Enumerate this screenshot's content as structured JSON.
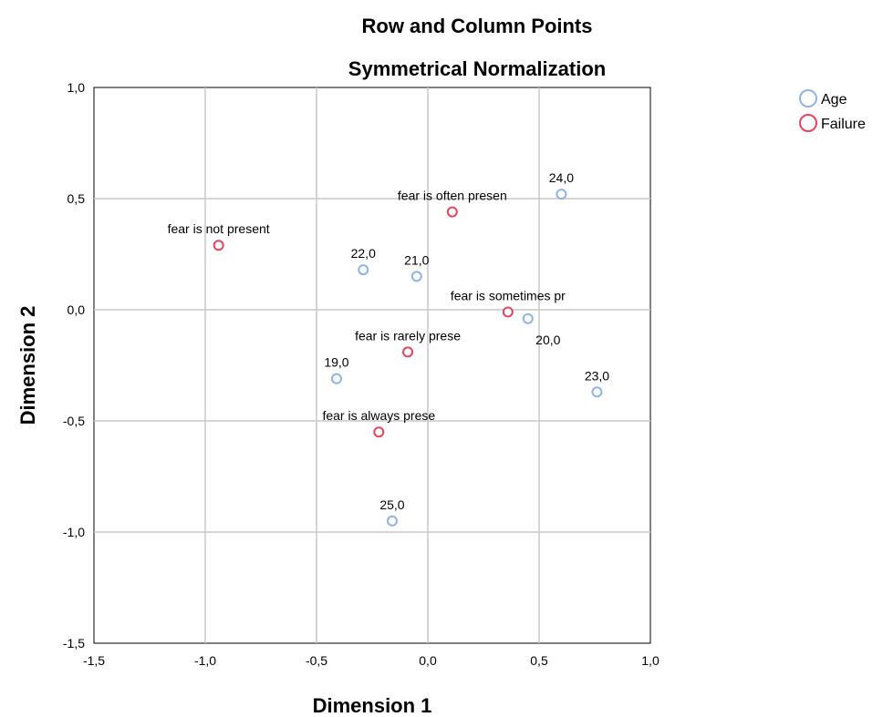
{
  "chart_data": {
    "type": "scatter",
    "title": "Row and Column Points",
    "subtitle": "Symmetrical Normalization",
    "xlabel": "Dimension 1",
    "ylabel": "Dimension 2",
    "xlim": [
      -1.5,
      1.0
    ],
    "ylim": [
      -1.5,
      1.0
    ],
    "x_ticks": [
      -1.5,
      -1.0,
      -0.5,
      0.0,
      0.5,
      1.0
    ],
    "y_ticks": [
      -1.5,
      -1.0,
      -0.5,
      0.0,
      0.5,
      1.0
    ],
    "x_tick_labels": [
      "-1,5",
      "-1,0",
      "-0,5",
      "0,0",
      "0,5",
      "1,0"
    ],
    "y_tick_labels": [
      "-1,5",
      "-1,0",
      "-0,5",
      "0,0",
      "0,5",
      "1,0"
    ],
    "grid": true,
    "legend_position": "top-right",
    "series": [
      {
        "name": "Age",
        "color": "#8fb4e3",
        "marker": "open-circle",
        "points": [
          {
            "label": "24,0",
            "x": 0.6,
            "y": 0.52
          },
          {
            "label": "22,0",
            "x": -0.29,
            "y": 0.18
          },
          {
            "label": "21,0",
            "x": -0.05,
            "y": 0.15
          },
          {
            "label": "20,0",
            "x": 0.45,
            "y": -0.04
          },
          {
            "label": "19,0",
            "x": -0.41,
            "y": -0.31
          },
          {
            "label": "23,0",
            "x": 0.76,
            "y": -0.37
          },
          {
            "label": "25,0",
            "x": -0.16,
            "y": -0.95
          }
        ]
      },
      {
        "name": "Failure",
        "color": "#e0465e",
        "marker": "open-circle",
        "points": [
          {
            "label": "fear is often presen",
            "x": 0.11,
            "y": 0.44
          },
          {
            "label": "fear is not present",
            "x": -0.94,
            "y": 0.29
          },
          {
            "label": "fear is sometimes pr",
            "x": 0.36,
            "y": -0.01
          },
          {
            "label": "fear is rarely prese",
            "x": -0.09,
            "y": -0.19
          },
          {
            "label": "fear is always prese",
            "x": -0.22,
            "y": -0.55
          }
        ]
      }
    ]
  }
}
